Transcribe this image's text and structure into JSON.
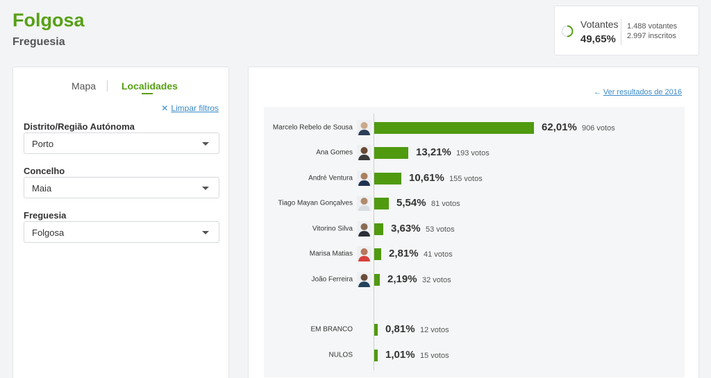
{
  "header": {
    "title": "Folgosa",
    "subtitle": "Freguesia"
  },
  "turnout": {
    "label": "Votantes",
    "percent": "49,65%",
    "voters": "1.488 votantes",
    "registered": "2.997 inscritos",
    "fraction": 0.4965,
    "accent": "#57a015"
  },
  "filters": {
    "tabs": [
      {
        "label": "Mapa"
      },
      {
        "label": "Localidades"
      }
    ],
    "clear_label": "Limpar filtros",
    "fields": [
      {
        "label": "Distrito/Região Autónoma",
        "value": "Porto"
      },
      {
        "label": "Concelho",
        "value": "Maia"
      },
      {
        "label": "Freguesia",
        "value": "Folgosa"
      }
    ]
  },
  "results": {
    "prev_link": "Ver resultados de 2016"
  },
  "chart_data": {
    "type": "bar",
    "orientation": "horizontal",
    "max_percent": 62.01,
    "bar_color": "#4f9a0f",
    "candidates": [
      {
        "name": "Marcelo Rebelo de Sousa",
        "percent": 62.01,
        "percent_label": "62,01%",
        "votes_label": "906 votos"
      },
      {
        "name": "Ana Gomes",
        "percent": 13.21,
        "percent_label": "13,21%",
        "votes_label": "193 votos"
      },
      {
        "name": "André Ventura",
        "percent": 10.61,
        "percent_label": "10,61%",
        "votes_label": "155 votos"
      },
      {
        "name": "Tiago Mayan Gonçalves",
        "percent": 5.54,
        "percent_label": "5,54%",
        "votes_label": "81 votos"
      },
      {
        "name": "Vitorino Silva",
        "percent": 3.63,
        "percent_label": "3,63%",
        "votes_label": "53 votos"
      },
      {
        "name": "Marisa Matias",
        "percent": 2.81,
        "percent_label": "2,81%",
        "votes_label": "41 votos"
      },
      {
        "name": "João Ferreira",
        "percent": 2.19,
        "percent_label": "2,19%",
        "votes_label": "32 votos"
      }
    ],
    "other": [
      {
        "name": "EM BRANCO",
        "percent": 0.81,
        "percent_label": "0,81%",
        "votes_label": "12 votos"
      },
      {
        "name": "NULOS",
        "percent": 1.01,
        "percent_label": "1,01%",
        "votes_label": "15 votos"
      }
    ]
  }
}
